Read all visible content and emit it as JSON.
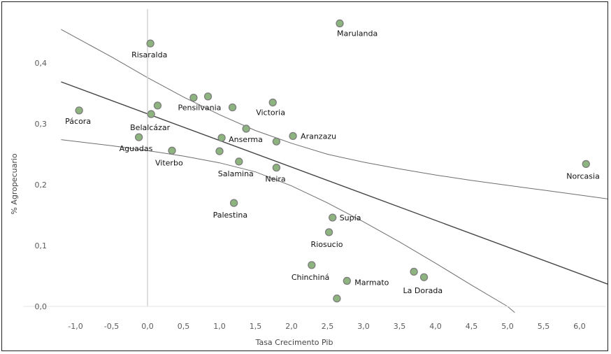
{
  "chart_data": {
    "type": "scatter",
    "xlabel": "Tasa Crecimento Pib",
    "ylabel": "% Agropecuario",
    "xlim": [
      -1.4,
      6.5
    ],
    "ylim": [
      -0.01,
      0.47
    ],
    "xticks": [
      -1.0,
      -0.5,
      0.0,
      0.5,
      1.0,
      1.5,
      2.0,
      2.5,
      3.0,
      3.5,
      4.0,
      4.5,
      5.0,
      5.5,
      6.0
    ],
    "xtick_labels": [
      "-1,0",
      "-0,5",
      "0,0",
      "0,5",
      "1,0",
      "1,5",
      "2,0",
      "2,5",
      "3,0",
      "3,5",
      "4,0",
      "4,5",
      "5,0",
      "5,5",
      "6,0"
    ],
    "yticks": [
      0.0,
      0.1,
      0.2,
      0.3,
      0.4
    ],
    "ytick_labels": [
      "0,0",
      "0,1",
      "0,2",
      "0,3",
      "0,4"
    ],
    "grid": false,
    "point_color": "#8db47f",
    "point_edge": "#7d7d7d",
    "points": [
      {
        "label": "Marulanda",
        "x": 2.67,
        "y": 0.465
      },
      {
        "label": "Risaralda",
        "x": 0.04,
        "y": 0.432
      },
      {
        "label": "",
        "x": 0.64,
        "y": 0.343
      },
      {
        "label": "",
        "x": 0.84,
        "y": 0.345
      },
      {
        "label": "Pensilvania",
        "x": 1.18,
        "y": 0.327
      },
      {
        "label": "Victoria",
        "x": 1.74,
        "y": 0.335
      },
      {
        "label": "",
        "x": 0.14,
        "y": 0.33
      },
      {
        "label": "Pácora",
        "x": -0.95,
        "y": 0.322
      },
      {
        "label": "Belalcázar",
        "x": 0.05,
        "y": 0.316
      },
      {
        "label": "",
        "x": 1.37,
        "y": 0.292
      },
      {
        "label": "Aguadas",
        "x": -0.12,
        "y": 0.278
      },
      {
        "label": "Anserma",
        "x": 1.03,
        "y": 0.277
      },
      {
        "label": "Aranzazu",
        "x": 2.02,
        "y": 0.28
      },
      {
        "label": "",
        "x": 1.79,
        "y": 0.271
      },
      {
        "label": "Viterbo",
        "x": 0.34,
        "y": 0.256
      },
      {
        "label": "",
        "x": 1.0,
        "y": 0.255
      },
      {
        "label": "Salamina",
        "x": 1.27,
        "y": 0.238
      },
      {
        "label": "Neira",
        "x": 1.79,
        "y": 0.228
      },
      {
        "label": "Norcasia",
        "x": 6.09,
        "y": 0.234
      },
      {
        "label": "Palestina",
        "x": 1.2,
        "y": 0.17
      },
      {
        "label": "Supía",
        "x": 2.57,
        "y": 0.146
      },
      {
        "label": "Riosucio",
        "x": 2.52,
        "y": 0.122
      },
      {
        "label": "Chinchiná",
        "x": 2.28,
        "y": 0.068
      },
      {
        "label": "",
        "x": 3.7,
        "y": 0.057
      },
      {
        "label": "La Dorada",
        "x": 3.84,
        "y": 0.048
      },
      {
        "label": "Marmato",
        "x": 2.77,
        "y": 0.042
      },
      {
        "label": "",
        "x": 2.63,
        "y": 0.013
      }
    ],
    "fit_line": {
      "x": [
        -1.2,
        6.5
      ],
      "y": [
        0.369,
        0.032
      ]
    },
    "ci_upper": {
      "x": [
        -1.2,
        -0.5,
        0.0,
        0.5,
        1.0,
        1.5,
        2.0,
        2.5,
        3.0,
        3.5,
        4.0,
        4.5,
        5.0,
        5.5,
        6.0,
        6.5
      ],
      "y": [
        0.455,
        0.41,
        0.376,
        0.344,
        0.315,
        0.289,
        0.268,
        0.25,
        0.237,
        0.226,
        0.216,
        0.207,
        0.199,
        0.191,
        0.183,
        0.175
      ]
    },
    "ci_lower": {
      "x": [
        -1.2,
        -0.5,
        0.0,
        0.5,
        1.0,
        1.5,
        2.0,
        2.5,
        3.0,
        3.5,
        4.0,
        4.5,
        5.0,
        5.1
      ],
      "y": [
        0.274,
        0.264,
        0.256,
        0.247,
        0.236,
        0.221,
        0.198,
        0.17,
        0.139,
        0.106,
        0.071,
        0.035,
        0.0,
        -0.01
      ]
    }
  }
}
